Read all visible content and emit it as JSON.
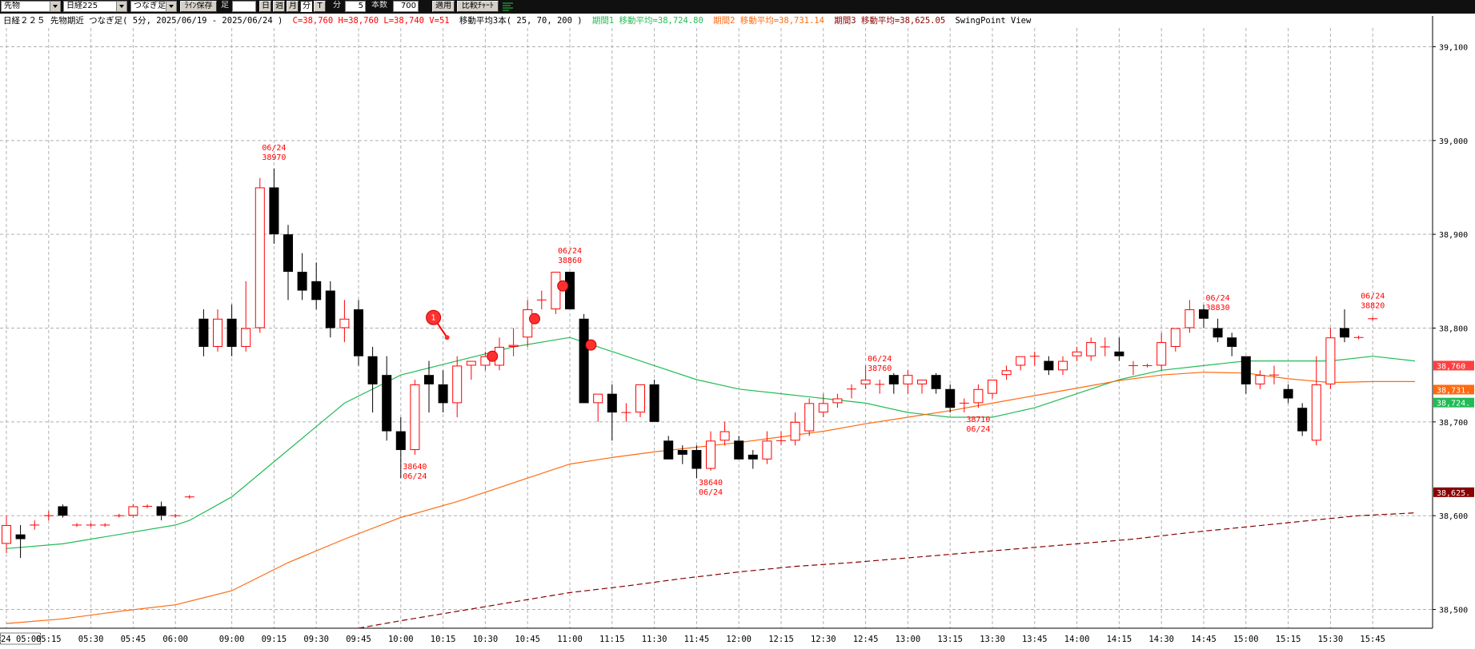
{
  "toolbar": {
    "market_select": "先物",
    "index_select": "日経225",
    "chart_mode_select": "つなぎ足",
    "save_line_button": "ﾗｲﾝ保存",
    "ashi_label": "足",
    "period_input": "",
    "day_button": "日",
    "week_button": "週",
    "month_button": "月",
    "minute_button": "分",
    "tick_button": "T",
    "minute_label": "分",
    "interval_value": "5",
    "count_label": "本数",
    "count_value": "700",
    "apply_button": "適用",
    "compare_button": "比較ﾁｬｰﾄ"
  },
  "info": {
    "title": "日経２２５ 先物期近 つなぎ足( 5分, 2025/06/19 - 2025/06/24 )",
    "ohlc": "C=38,760 H=38,760 L=38,740 V=51",
    "ma_title": "移動平均3本( 25, 70, 200 )",
    "ma1": "期間1 移動平均=38,724.80",
    "ma2": "期間2 移動平均=38,731.14",
    "ma3": "期間3 移動平均=38,625.05",
    "swing": "SwingPoint View"
  },
  "colors": {
    "up_candle": "#ff0000",
    "down_candle": "#000000",
    "ma1": "#22bb55",
    "ma2": "#ff6a10",
    "ma3": "#880000",
    "annotation": "#ff0000",
    "grid": "#b0b0b0"
  },
  "chart_data": {
    "type": "candlestick",
    "ylim": [
      38480,
      39120
    ],
    "y_ticks": [
      38500,
      38600,
      38700,
      38800,
      38900,
      39000,
      39100
    ],
    "y_tick_labels": [
      "38,500",
      "38,600",
      "38,700",
      "38,800",
      "38,900",
      "39,000",
      "39,100"
    ],
    "x_tick_labels": [
      "24 05:00",
      "05:15",
      "05:30",
      "05:45",
      "06:00",
      "09:00",
      "09:15",
      "09:30",
      "09:45",
      "10:00",
      "10:15",
      "10:30",
      "10:45",
      "11:00",
      "11:15",
      "11:30",
      "11:45",
      "12:00",
      "12:15",
      "12:30",
      "12:45",
      "13:00",
      "13:15",
      "13:30",
      "13:45",
      "14:00",
      "14:15",
      "14:30",
      "14:45",
      "15:00",
      "15:15",
      "15:30",
      "15:45"
    ],
    "x_tick_index": [
      0,
      3,
      6,
      9,
      12,
      16,
      19,
      22,
      25,
      28,
      31,
      34,
      37,
      40,
      43,
      46,
      49,
      52,
      55,
      58,
      61,
      64,
      67,
      70,
      73,
      76,
      79,
      82,
      85,
      88,
      91,
      94,
      97
    ],
    "candles": [
      [
        38570,
        38600,
        38560,
        38590
      ],
      [
        38580,
        38590,
        38555,
        38575
      ],
      [
        38590,
        38595,
        38585,
        38590
      ],
      [
        38600,
        38605,
        38595,
        38600
      ],
      [
        38610,
        38612,
        38598,
        38600
      ],
      [
        38590,
        38592,
        38588,
        38590
      ],
      [
        38590,
        38592,
        38588,
        38590
      ],
      [
        38590,
        38592,
        38588,
        38590
      ],
      [
        38600,
        38602,
        38598,
        38600
      ],
      [
        38600,
        38612,
        38598,
        38610
      ],
      [
        38610,
        38612,
        38608,
        38610
      ],
      [
        38610,
        38615,
        38595,
        38600
      ],
      [
        38600,
        38602,
        38598,
        38600
      ],
      [
        38620,
        38622,
        38618,
        38620
      ],
      [
        38810,
        38820,
        38770,
        38780
      ],
      [
        38780,
        38820,
        38775,
        38810
      ],
      [
        38810,
        38825,
        38770,
        38780
      ],
      [
        38780,
        38850,
        38775,
        38800
      ],
      [
        38800,
        38960,
        38795,
        38950
      ],
      [
        38950,
        38970,
        38890,
        38900
      ],
      [
        38900,
        38910,
        38830,
        38860
      ],
      [
        38860,
        38880,
        38830,
        38840
      ],
      [
        38850,
        38870,
        38820,
        38830
      ],
      [
        38840,
        38850,
        38790,
        38800
      ],
      [
        38800,
        38830,
        38785,
        38810
      ],
      [
        38820,
        38830,
        38760,
        38770
      ],
      [
        38770,
        38780,
        38710,
        38740
      ],
      [
        38750,
        38770,
        38680,
        38690
      ],
      [
        38690,
        38705,
        38640,
        38670
      ],
      [
        38670,
        38745,
        38665,
        38740
      ],
      [
        38750,
        38765,
        38710,
        38740
      ],
      [
        38740,
        38755,
        38710,
        38720
      ],
      [
        38720,
        38770,
        38705,
        38760
      ],
      [
        38760,
        38765,
        38745,
        38765
      ],
      [
        38760,
        38775,
        38755,
        38770
      ],
      [
        38760,
        38790,
        38755,
        38780
      ],
      [
        38780,
        38800,
        38770,
        38782
      ],
      [
        38790,
        38830,
        38780,
        38820
      ],
      [
        38830,
        38840,
        38820,
        38830
      ],
      [
        38820,
        38860,
        38815,
        38860
      ],
      [
        38860,
        38860,
        38820,
        38820
      ],
      [
        38810,
        38815,
        38720,
        38720
      ],
      [
        38720,
        38730,
        38700,
        38730
      ],
      [
        38730,
        38740,
        38680,
        38710
      ],
      [
        38710,
        38720,
        38700,
        38710
      ],
      [
        38710,
        38740,
        38705,
        38740
      ],
      [
        38740,
        38745,
        38700,
        38700
      ],
      [
        38680,
        38685,
        38660,
        38660
      ],
      [
        38670,
        38675,
        38655,
        38665
      ],
      [
        38670,
        38675,
        38640,
        38650
      ],
      [
        38650,
        38690,
        38648,
        38680
      ],
      [
        38680,
        38700,
        38675,
        38690
      ],
      [
        38680,
        38685,
        38660,
        38660
      ],
      [
        38665,
        38670,
        38650,
        38660
      ],
      [
        38660,
        38690,
        38655,
        38680
      ],
      [
        38680,
        38690,
        38675,
        38680
      ],
      [
        38680,
        38710,
        38675,
        38700
      ],
      [
        38690,
        38725,
        38685,
        38720
      ],
      [
        38710,
        38730,
        38705,
        38720
      ],
      [
        38720,
        38730,
        38715,
        38725
      ],
      [
        38735,
        38740,
        38725,
        38735
      ],
      [
        38740,
        38760,
        38735,
        38745
      ],
      [
        38740,
        38745,
        38730,
        38740
      ],
      [
        38750,
        38752,
        38730,
        38740
      ],
      [
        38740,
        38755,
        38730,
        38750
      ],
      [
        38740,
        38745,
        38730,
        38745
      ],
      [
        38750,
        38752,
        38730,
        38735
      ],
      [
        38735,
        38740,
        38710,
        38715
      ],
      [
        38720,
        38725,
        38710,
        38720
      ],
      [
        38720,
        38740,
        38715,
        38735
      ],
      [
        38730,
        38745,
        38725,
        38745
      ],
      [
        38750,
        38760,
        38745,
        38755
      ],
      [
        38760,
        38770,
        38755,
        38770
      ],
      [
        38770,
        38775,
        38760,
        38770
      ],
      [
        38765,
        38770,
        38750,
        38755
      ],
      [
        38755,
        38770,
        38750,
        38765
      ],
      [
        38770,
        38780,
        38765,
        38775
      ],
      [
        38770,
        38790,
        38765,
        38785
      ],
      [
        38780,
        38790,
        38770,
        38780
      ],
      [
        38775,
        38790,
        38765,
        38770
      ],
      [
        38760,
        38765,
        38750,
        38760
      ],
      [
        38760,
        38762,
        38758,
        38760
      ],
      [
        38760,
        38795,
        38755,
        38785
      ],
      [
        38780,
        38800,
        38775,
        38800
      ],
      [
        38800,
        38830,
        38795,
        38820
      ],
      [
        38820,
        38825,
        38800,
        38810
      ],
      [
        38800,
        38810,
        38785,
        38790
      ],
      [
        38790,
        38795,
        38770,
        38780
      ],
      [
        38770,
        38770,
        38730,
        38740
      ],
      [
        38740,
        38755,
        38735,
        38750
      ],
      [
        38750,
        38760,
        38740,
        38750
      ],
      [
        38735,
        38740,
        38720,
        38725
      ],
      [
        38715,
        38720,
        38685,
        38690
      ],
      [
        38680,
        38770,
        38675,
        38740
      ],
      [
        38740,
        38800,
        38735,
        38790
      ],
      [
        38800,
        38820,
        38785,
        38790
      ],
      [
        38790,
        38792,
        38788,
        38790
      ],
      [
        38810,
        38812,
        38808,
        38810
      ]
    ],
    "series": [
      {
        "name": "期間1",
        "type": "ma",
        "points": [
          [
            0,
            38565
          ],
          [
            4,
            38570
          ],
          [
            8,
            38580
          ],
          [
            12,
            38590
          ],
          [
            13,
            38595
          ],
          [
            16,
            38620
          ],
          [
            20,
            38670
          ],
          [
            24,
            38720
          ],
          [
            28,
            38750
          ],
          [
            32,
            38765
          ],
          [
            36,
            38780
          ],
          [
            40,
            38790
          ],
          [
            43,
            38775
          ],
          [
            46,
            38760
          ],
          [
            49,
            38745
          ],
          [
            52,
            38735
          ],
          [
            55,
            38730
          ],
          [
            58,
            38725
          ],
          [
            61,
            38720
          ],
          [
            64,
            38710
          ],
          [
            67,
            38705
          ],
          [
            70,
            38705
          ],
          [
            73,
            38715
          ],
          [
            76,
            38730
          ],
          [
            79,
            38745
          ],
          [
            82,
            38755
          ],
          [
            85,
            38760
          ],
          [
            88,
            38765
          ],
          [
            91,
            38765
          ],
          [
            94,
            38765
          ],
          [
            97,
            38770
          ],
          [
            100,
            38765
          ]
        ]
      },
      {
        "name": "期間2",
        "type": "ma",
        "points": [
          [
            0,
            38485
          ],
          [
            4,
            38490
          ],
          [
            8,
            38498
          ],
          [
            12,
            38505
          ],
          [
            16,
            38520
          ],
          [
            20,
            38550
          ],
          [
            24,
            38575
          ],
          [
            28,
            38598
          ],
          [
            32,
            38615
          ],
          [
            36,
            38635
          ],
          [
            40,
            38655
          ],
          [
            43,
            38662
          ],
          [
            46,
            38668
          ],
          [
            49,
            38673
          ],
          [
            52,
            38678
          ],
          [
            55,
            38684
          ],
          [
            58,
            38690
          ],
          [
            61,
            38698
          ],
          [
            64,
            38705
          ],
          [
            67,
            38712
          ],
          [
            70,
            38720
          ],
          [
            73,
            38728
          ],
          [
            76,
            38736
          ],
          [
            79,
            38744
          ],
          [
            82,
            38750
          ],
          [
            85,
            38753
          ],
          [
            88,
            38752
          ],
          [
            91,
            38746
          ],
          [
            94,
            38742
          ],
          [
            97,
            38743
          ],
          [
            100,
            38743
          ]
        ]
      },
      {
        "name": "期間3",
        "type": "ma",
        "dashed": true,
        "points": [
          [
            25,
            38480
          ],
          [
            28,
            38488
          ],
          [
            32,
            38498
          ],
          [
            36,
            38508
          ],
          [
            40,
            38518
          ],
          [
            44,
            38525
          ],
          [
            48,
            38533
          ],
          [
            52,
            38540
          ],
          [
            56,
            38546
          ],
          [
            60,
            38550
          ],
          [
            64,
            38555
          ],
          [
            68,
            38560
          ],
          [
            72,
            38565
          ],
          [
            76,
            38570
          ],
          [
            80,
            38575
          ],
          [
            84,
            38582
          ],
          [
            88,
            38588
          ],
          [
            92,
            38594
          ],
          [
            96,
            38600
          ],
          [
            100,
            38603
          ]
        ]
      }
    ],
    "swing_high_labels": [
      {
        "index": 19,
        "date": "06/24",
        "price": "38970"
      },
      {
        "index": 40,
        "date": "06/24",
        "price": "38860"
      },
      {
        "index": 62,
        "date": "06/24",
        "price": "38760"
      },
      {
        "index": 86,
        "date": "06/24",
        "price": "38830"
      },
      {
        "index": 97,
        "date": "06/24",
        "price": "38820"
      }
    ],
    "swing_low_labels": [
      {
        "index": 29,
        "price": "38640",
        "date": "06/24"
      },
      {
        "index": 50,
        "price": "38640",
        "date": "06/24"
      },
      {
        "index": 69,
        "price": "38710",
        "date": "06/24"
      }
    ],
    "markers": [
      {
        "index": 31,
        "price": 38790,
        "label": "1"
      },
      {
        "index": 34.5,
        "price": 38770
      },
      {
        "index": 37.5,
        "price": 38810
      },
      {
        "index": 39.5,
        "price": 38845
      },
      {
        "index": 41.5,
        "price": 38782
      }
    ],
    "right_badges": [
      {
        "value": 38760,
        "label": "38,760",
        "bg": "#ff4040",
        "fg": "#ffffff"
      },
      {
        "value": 38731,
        "label": "38,731.",
        "bg": "#ff6a10",
        "fg": "#ffffff"
      },
      {
        "value": 38724,
        "label": "38,724.",
        "bg": "#22bb55",
        "fg": "#ffffff"
      },
      {
        "value": 38625,
        "label": "38,625.",
        "bg": "#880000",
        "fg": "#ffffff"
      }
    ]
  }
}
